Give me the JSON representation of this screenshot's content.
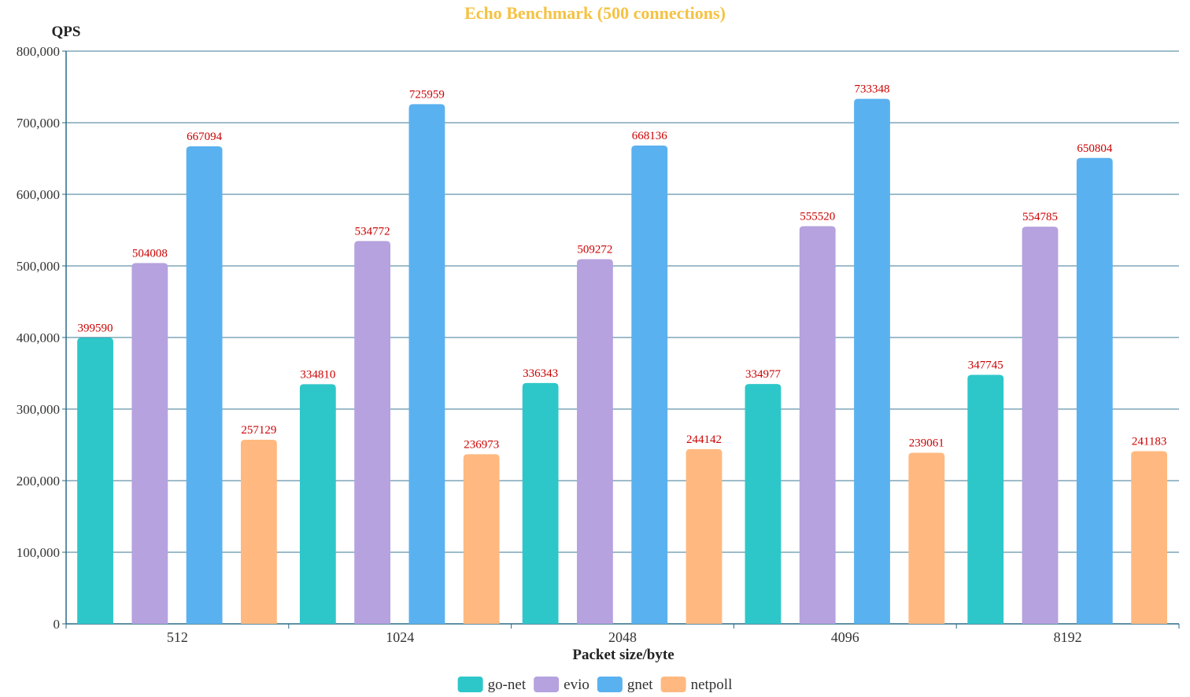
{
  "chart_data": {
    "type": "bar",
    "title": "Echo Benchmark (500 connections)",
    "xlabel": "Packet size/byte",
    "ylabel": "QPS",
    "categories": [
      "512",
      "1024",
      "2048",
      "4096",
      "8192"
    ],
    "ylim": [
      0,
      800000
    ],
    "y_ticks": [
      0,
      100000,
      200000,
      300000,
      400000,
      500000,
      600000,
      700000,
      800000
    ],
    "y_tick_labels": [
      "0",
      "100,000",
      "200,000",
      "300,000",
      "400,000",
      "500,000",
      "600,000",
      "700,000",
      "800,000"
    ],
    "grid": true,
    "legend_position": "bottom-center",
    "series": [
      {
        "name": "go-net",
        "color": "#2ec7c9",
        "values": [
          399590,
          334810,
          336343,
          334977,
          347745
        ]
      },
      {
        "name": "evio",
        "color": "#b6a2de",
        "values": [
          504008,
          534772,
          509272,
          555520,
          554785
        ]
      },
      {
        "name": "gnet",
        "color": "#5ab1ef",
        "values": [
          667094,
          725959,
          668136,
          733348,
          650804
        ]
      },
      {
        "name": "netpoll",
        "color": "#ffb980",
        "values": [
          257129,
          236973,
          244142,
          239061,
          241183
        ]
      }
    ],
    "colors": {
      "title": "#f5c242",
      "data_label": "#cc0000",
      "grid": "#3d7a96",
      "axis": "#2a6a8a"
    }
  }
}
